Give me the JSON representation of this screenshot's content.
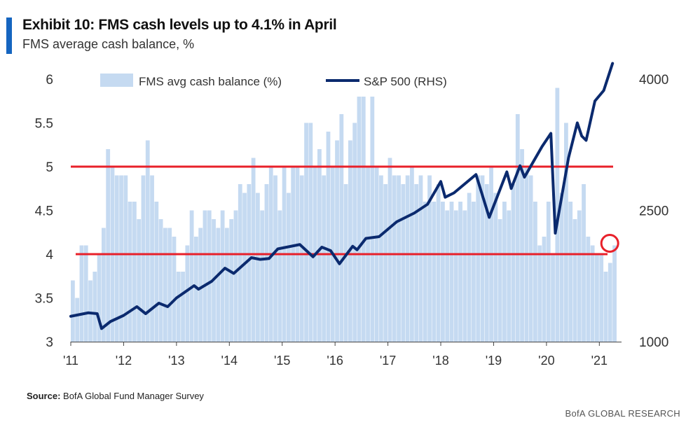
{
  "header": {
    "title": "Exhibit 10: FMS cash levels up to 4.1% in April",
    "subtitle": "FMS average cash balance, %"
  },
  "footer": {
    "source_label": "Source:",
    "source_text": "BofA Global Fund Manager Survey",
    "brand": "BofA GLOBAL RESEARCH"
  },
  "colors": {
    "bar": "#c5daf1",
    "line": "#0b2a6e",
    "reference": "#e8202a",
    "axis_text": "#333333"
  },
  "chart_data": {
    "type": "bar",
    "legend": {
      "placement": "top-left",
      "entries": [
        "FMS avg cash balance (%)",
        "S&P 500 (RHS)"
      ]
    },
    "x_tick_labels": [
      "'11",
      "'12",
      "'13",
      "'14",
      "'15",
      "'16",
      "'17",
      "'18",
      "'19",
      "'20",
      "'21"
    ],
    "y_left": {
      "ylim": [
        3,
        6
      ],
      "ticks": [
        "3",
        "3.5",
        "4",
        "4.5",
        "5",
        "5.5",
        "6"
      ]
    },
    "y_right": {
      "ylim": [
        1000,
        4000
      ],
      "ticks": [
        "1000",
        "2500",
        "4000"
      ]
    },
    "reference_lines": [
      5.0,
      4.0
    ],
    "highlight": {
      "x": "2021-04",
      "value": 4.1
    },
    "grid": false,
    "series": [
      {
        "name": "FMS avg cash balance (%)",
        "kind": "bar",
        "axis": "left",
        "x": [
          "2011-01",
          "2011-02",
          "2011-03",
          "2011-04",
          "2011-05",
          "2011-06",
          "2011-07",
          "2011-08",
          "2011-09",
          "2011-10",
          "2011-11",
          "2011-12",
          "2012-01",
          "2012-02",
          "2012-03",
          "2012-04",
          "2012-05",
          "2012-06",
          "2012-07",
          "2012-08",
          "2012-09",
          "2012-10",
          "2012-11",
          "2012-12",
          "2013-01",
          "2013-02",
          "2013-03",
          "2013-04",
          "2013-05",
          "2013-06",
          "2013-07",
          "2013-08",
          "2013-09",
          "2013-10",
          "2013-11",
          "2013-12",
          "2014-01",
          "2014-02",
          "2014-03",
          "2014-04",
          "2014-05",
          "2014-06",
          "2014-07",
          "2014-08",
          "2014-09",
          "2014-10",
          "2014-11",
          "2014-12",
          "2015-01",
          "2015-02",
          "2015-03",
          "2015-04",
          "2015-05",
          "2015-06",
          "2015-07",
          "2015-08",
          "2015-09",
          "2015-10",
          "2015-11",
          "2015-12",
          "2016-01",
          "2016-02",
          "2016-03",
          "2016-04",
          "2016-05",
          "2016-06",
          "2016-07",
          "2016-08",
          "2016-09",
          "2016-10",
          "2016-11",
          "2016-12",
          "2017-01",
          "2017-02",
          "2017-03",
          "2017-04",
          "2017-05",
          "2017-06",
          "2017-07",
          "2017-08",
          "2017-09",
          "2017-10",
          "2017-11",
          "2017-12",
          "2018-01",
          "2018-02",
          "2018-03",
          "2018-04",
          "2018-05",
          "2018-06",
          "2018-07",
          "2018-08",
          "2018-09",
          "2018-10",
          "2018-11",
          "2018-12",
          "2019-01",
          "2019-02",
          "2019-03",
          "2019-04",
          "2019-05",
          "2019-06",
          "2019-07",
          "2019-08",
          "2019-09",
          "2019-10",
          "2019-11",
          "2019-12",
          "2020-01",
          "2020-02",
          "2020-03",
          "2020-04",
          "2020-05",
          "2020-06",
          "2020-07",
          "2020-08",
          "2020-09",
          "2020-10",
          "2020-11",
          "2020-12",
          "2021-01",
          "2021-02",
          "2021-03",
          "2021-04"
        ],
        "values": [
          3.7,
          3.5,
          4.1,
          4.1,
          3.7,
          3.8,
          4.0,
          4.3,
          5.2,
          5.0,
          4.9,
          4.9,
          4.9,
          4.6,
          4.6,
          4.4,
          4.9,
          5.3,
          4.9,
          4.6,
          4.4,
          4.3,
          4.3,
          4.2,
          3.8,
          3.8,
          4.1,
          4.5,
          4.2,
          4.3,
          4.5,
          4.5,
          4.4,
          4.3,
          4.5,
          4.3,
          4.4,
          4.5,
          4.8,
          4.7,
          4.8,
          5.1,
          4.7,
          4.5,
          4.8,
          5.0,
          4.9,
          4.5,
          5.0,
          4.7,
          5.0,
          5.0,
          4.9,
          5.5,
          5.5,
          5.0,
          5.2,
          4.9,
          5.4,
          5.0,
          5.3,
          5.6,
          4.8,
          5.3,
          5.5,
          5.8,
          5.8,
          5.0,
          5.8,
          5.0,
          4.9,
          4.8,
          5.1,
          4.9,
          4.9,
          4.8,
          4.9,
          5.0,
          4.8,
          4.9,
          4.6,
          4.9,
          4.6,
          4.8,
          4.6,
          4.5,
          4.6,
          4.5,
          4.6,
          4.5,
          4.7,
          4.6,
          4.9,
          4.9,
          4.8,
          5.0,
          4.7,
          4.4,
          4.6,
          4.5,
          4.8,
          5.6,
          5.2,
          5.0,
          4.9,
          4.6,
          4.1,
          4.2,
          4.6,
          4.0,
          5.9,
          4.7,
          5.5,
          4.6,
          4.4,
          4.5,
          4.8,
          4.2,
          4.1,
          4.0,
          4.0,
          3.8,
          3.9,
          4.1
        ]
      },
      {
        "name": "S&P 500 (RHS)",
        "kind": "line",
        "axis": "right",
        "x": [
          "2011-01",
          "2011-05",
          "2011-07",
          "2011-08",
          "2011-10",
          "2012-01",
          "2012-04",
          "2012-06",
          "2012-09",
          "2012-11",
          "2013-01",
          "2013-05",
          "2013-06",
          "2013-09",
          "2013-12",
          "2014-02",
          "2014-06",
          "2014-08",
          "2014-10",
          "2014-12",
          "2015-03",
          "2015-05",
          "2015-08",
          "2015-10",
          "2015-12",
          "2016-02",
          "2016-05",
          "2016-06",
          "2016-08",
          "2016-11",
          "2017-03",
          "2017-07",
          "2017-10",
          "2018-01",
          "2018-02",
          "2018-04",
          "2018-09",
          "2018-12",
          "2019-04",
          "2019-05",
          "2019-07",
          "2019-08",
          "2019-12",
          "2020-02",
          "2020-03",
          "2020-06",
          "2020-08",
          "2020-09",
          "2020-10",
          "2020-12",
          "2021-02",
          "2021-04"
        ],
        "values": [
          1290,
          1330,
          1320,
          1150,
          1230,
          1300,
          1400,
          1320,
          1440,
          1400,
          1500,
          1640,
          1600,
          1690,
          1840,
          1780,
          1960,
          1940,
          1950,
          2060,
          2090,
          2110,
          1970,
          2080,
          2040,
          1890,
          2090,
          2050,
          2180,
          2200,
          2370,
          2470,
          2570,
          2830,
          2650,
          2700,
          2910,
          2420,
          2940,
          2750,
          3010,
          2880,
          3230,
          3380,
          2240,
          3100,
          3500,
          3350,
          3300,
          3750,
          3870,
          4180
        ]
      }
    ]
  }
}
